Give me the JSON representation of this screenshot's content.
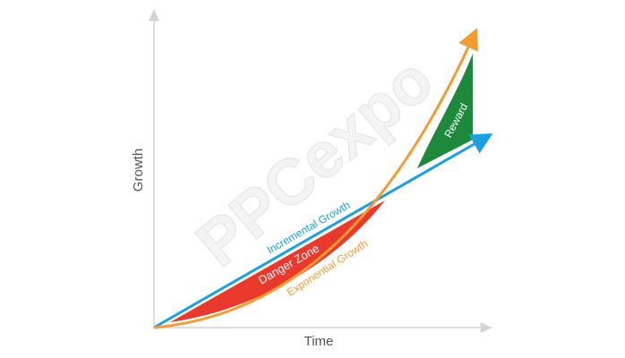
{
  "axes": {
    "y_label": "Growth",
    "x_label": "Time"
  },
  "curves": {
    "incremental": "Incremental Growth",
    "exponential": "Exponential Growth"
  },
  "zones": {
    "danger": "Danger Zone",
    "reward": "Reward"
  },
  "watermark": "PPCexpo"
}
